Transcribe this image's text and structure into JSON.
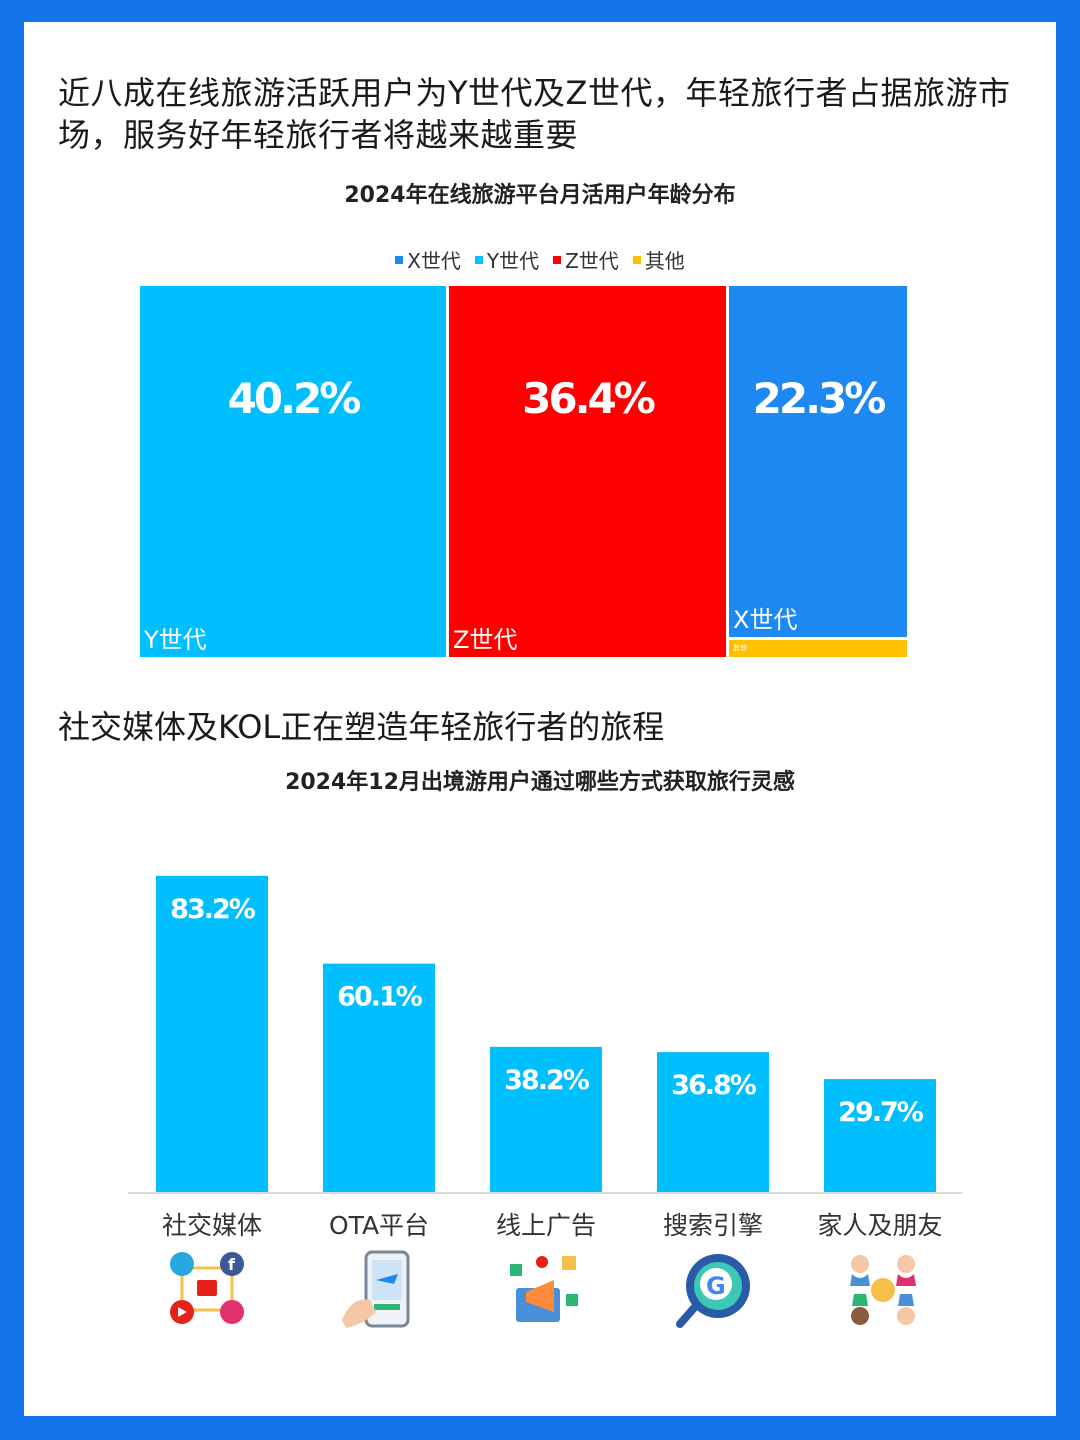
{
  "headline": "近八成在线旅游活跃用户为Y世代及Z世代，年轻旅行者占据旅游市场，服务好年轻旅行者将越来越重要",
  "section2_title": "社交媒体及KOL正在塑造年轻旅行者的旅程",
  "colors": {
    "background": "#1273EB",
    "y_gen": "#00BFFF",
    "z_gen": "#FF0000",
    "x_gen": "#1E88F2",
    "other": "#FFC000",
    "bars": "#00BFFF"
  },
  "chart_data": [
    {
      "type": "treemap",
      "title": "2024年在线旅游平台月活用户年龄分布",
      "legend": [
        {
          "name": "X世代",
          "color": "#1E88F2"
        },
        {
          "name": "Y世代",
          "color": "#00BFFF"
        },
        {
          "name": "Z世代",
          "color": "#FF0000"
        },
        {
          "name": "其他",
          "color": "#FFC000"
        }
      ],
      "legend_position": "top",
      "items": [
        {
          "name": "Y世代",
          "value": 40.2,
          "label": "40.2%"
        },
        {
          "name": "Z世代",
          "value": 36.4,
          "label": "36.4%"
        },
        {
          "name": "X世代",
          "value": 22.3,
          "label": "22.3%"
        },
        {
          "name": "其他",
          "value": 1.1,
          "label": "其他"
        }
      ]
    },
    {
      "type": "bar",
      "title": "2024年12月出境游用户通过哪些方式获取旅行灵感",
      "categories": [
        "社交媒体",
        "OTA平台",
        "线上广告",
        "搜索引擎",
        "家人及朋友"
      ],
      "values": [
        83.2,
        60.1,
        38.2,
        36.8,
        29.7
      ],
      "data_labels": [
        "83.2%",
        "60.1%",
        "38.2%",
        "36.8%",
        "29.7%"
      ],
      "icons": [
        "social-media-icon",
        "ota-phone-icon",
        "online-ad-icon",
        "search-engine-icon",
        "family-friends-icon"
      ],
      "ylim": [
        0,
        100
      ],
      "grid": false
    }
  ]
}
